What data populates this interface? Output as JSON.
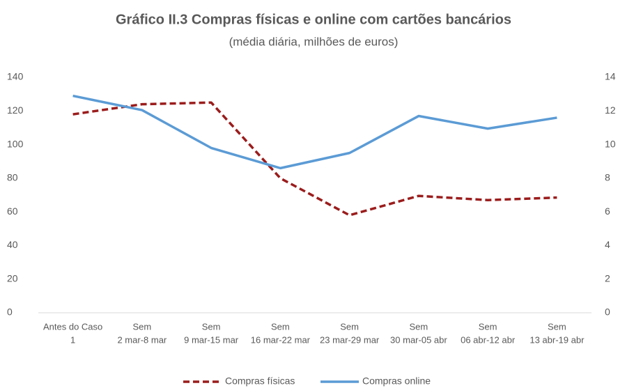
{
  "chart_data": {
    "type": "line",
    "title": "Gráfico II.3 Compras físicas e online com cartões bancários",
    "subtitle": "(média diária, milhões de euros)",
    "categories": [
      [
        "Antes do Caso",
        "1"
      ],
      [
        "Sem",
        "2 mar-8 mar"
      ],
      [
        "Sem",
        "9 mar-15 mar"
      ],
      [
        "Sem",
        "16 mar-22 mar"
      ],
      [
        "Sem",
        "23 mar-29 mar"
      ],
      [
        "Sem",
        "30 mar-05 abr"
      ],
      [
        "Sem",
        "06 abr-12 abr"
      ],
      [
        "Sem",
        "13 abr-19 abr"
      ]
    ],
    "series": [
      {
        "name": "Compras físicas",
        "color": "#9b1c1c",
        "dash": true,
        "values": [
          118,
          124,
          125,
          80,
          58,
          69.5,
          67,
          68.5
        ]
      },
      {
        "name": "Compras online",
        "color": "#5b9bd5",
        "axis": "y2",
        "values": [
          12.9,
          12.05,
          9.8,
          8.6,
          9.5,
          11.7,
          10.95,
          11.6
        ]
      }
    ],
    "ylim": [
      0,
      140
    ],
    "yticks": [
      0,
      20,
      40,
      60,
      80,
      100,
      120,
      140
    ],
    "y2lim": [
      0,
      14
    ],
    "y2ticks": [
      0,
      2,
      4,
      6,
      8,
      10,
      12,
      14
    ],
    "legend": "bottom"
  }
}
